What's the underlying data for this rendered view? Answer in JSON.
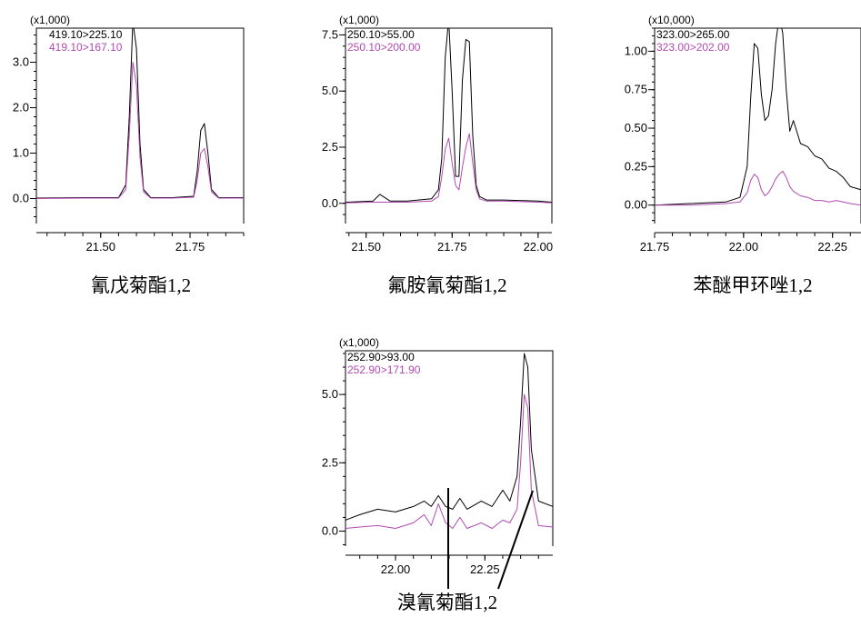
{
  "colors": {
    "black": "#000000",
    "magenta": "#b04ab0"
  },
  "chart_data": [
    {
      "type": "line",
      "scale_label": "(x1,000)",
      "caption": "氰戊菊酯1,2",
      "xlim": [
        21.32,
        21.9
      ],
      "ylim": [
        -0.55,
        3.75
      ],
      "xticks": [
        21.5,
        21.75
      ],
      "xtick_labels": [
        "21.50",
        "21.75"
      ],
      "yticks": [
        0,
        1,
        2,
        3
      ],
      "ytick_labels": [
        "0.0",
        "1.0",
        "2.0",
        "3.0"
      ],
      "series": [
        {
          "name": "419.10>225.10",
          "color": "#000000",
          "x": [
            21.32,
            21.45,
            21.55,
            21.57,
            21.58,
            21.59,
            21.6,
            21.61,
            21.62,
            21.64,
            21.7,
            21.76,
            21.77,
            21.78,
            21.79,
            21.8,
            21.81,
            21.83,
            21.9
          ],
          "y": [
            0.01,
            0.02,
            0.02,
            0.3,
            1.8,
            3.9,
            3.3,
            1.2,
            0.2,
            0.02,
            0.02,
            0.05,
            0.6,
            1.5,
            1.65,
            1.0,
            0.2,
            0.02,
            0.02
          ]
        },
        {
          "name": "419.10>167.10",
          "color": "#b04ab0",
          "x": [
            21.32,
            21.45,
            21.55,
            21.57,
            21.58,
            21.59,
            21.6,
            21.61,
            21.62,
            21.64,
            21.7,
            21.76,
            21.77,
            21.78,
            21.79,
            21.8,
            21.81,
            21.83,
            21.9
          ],
          "y": [
            0.0,
            0.01,
            0.01,
            0.2,
            1.4,
            3.0,
            2.5,
            0.9,
            0.15,
            0.01,
            0.01,
            0.03,
            0.4,
            1.0,
            1.1,
            0.7,
            0.15,
            0.01,
            0.01
          ]
        }
      ]
    },
    {
      "type": "line",
      "scale_label": "(x1,000)",
      "caption": "氟胺氰菊酯1,2",
      "xlim": [
        21.44,
        22.04
      ],
      "ylim": [
        -0.9,
        7.8
      ],
      "xticks": [
        21.5,
        21.75,
        22.0
      ],
      "xtick_labels": [
        "21.50",
        "21.75",
        "22.00"
      ],
      "yticks": [
        0,
        2.5,
        5.0,
        7.5
      ],
      "ytick_labels": [
        "0.0",
        "2.5",
        "5.0",
        "7.5"
      ],
      "series": [
        {
          "name": "250.10>55.00",
          "color": "#000000",
          "x": [
            21.44,
            21.52,
            21.54,
            21.57,
            21.62,
            21.69,
            21.71,
            21.72,
            21.73,
            21.74,
            21.75,
            21.76,
            21.77,
            21.78,
            21.79,
            21.8,
            21.81,
            21.82,
            21.83,
            21.85,
            21.9,
            22.0,
            22.04
          ],
          "y": [
            0.05,
            0.1,
            0.4,
            0.1,
            0.1,
            0.2,
            0.6,
            2.0,
            6.5,
            8.2,
            5.0,
            1.2,
            1.2,
            5.5,
            7.3,
            7.2,
            3.0,
            0.8,
            0.3,
            0.15,
            0.15,
            0.1,
            0.05
          ]
        },
        {
          "name": "250.10>200.00",
          "color": "#b04ab0",
          "x": [
            21.44,
            21.52,
            21.62,
            21.69,
            21.71,
            21.72,
            21.73,
            21.74,
            21.75,
            21.76,
            21.77,
            21.78,
            21.79,
            21.8,
            21.81,
            21.82,
            21.83,
            21.85,
            21.9,
            22.0,
            22.04
          ],
          "y": [
            0.02,
            0.05,
            0.05,
            0.1,
            0.3,
            1.2,
            2.4,
            2.9,
            1.8,
            0.8,
            0.6,
            1.6,
            2.5,
            3.1,
            1.8,
            0.6,
            0.2,
            0.1,
            0.1,
            0.05,
            0.02
          ]
        }
      ]
    },
    {
      "type": "line",
      "scale_label": "(x10,000)",
      "caption": "苯醚甲环唑1,2",
      "xlim": [
        21.75,
        22.33
      ],
      "ylim": [
        -0.12,
        1.15
      ],
      "xticks": [
        21.75,
        22.0,
        22.25
      ],
      "xtick_labels": [
        "21.75",
        "22.00",
        "22.25"
      ],
      "yticks": [
        0,
        0.25,
        0.5,
        0.75,
        1.0
      ],
      "ytick_labels": [
        "0.00",
        "0.25",
        "0.50",
        "0.75",
        "1.00"
      ],
      "series": [
        {
          "name": "323.00>265.00",
          "color": "#000000",
          "x": [
            21.75,
            21.85,
            21.95,
            21.99,
            22.01,
            22.02,
            22.03,
            22.04,
            22.05,
            22.06,
            22.07,
            22.08,
            22.09,
            22.1,
            22.11,
            22.12,
            22.13,
            22.14,
            22.16,
            22.18,
            22.2,
            22.22,
            22.24,
            22.26,
            22.28,
            22.3,
            22.33
          ],
          "y": [
            0.0,
            0.01,
            0.02,
            0.05,
            0.25,
            0.7,
            1.05,
            1.02,
            0.72,
            0.55,
            0.58,
            0.75,
            1.05,
            1.22,
            1.12,
            0.75,
            0.48,
            0.55,
            0.4,
            0.38,
            0.32,
            0.3,
            0.24,
            0.22,
            0.18,
            0.12,
            0.1
          ]
        },
        {
          "name": "323.00>202.00",
          "color": "#b04ab0",
          "x": [
            21.75,
            21.85,
            21.95,
            21.99,
            22.01,
            22.02,
            22.03,
            22.04,
            22.05,
            22.06,
            22.07,
            22.08,
            22.09,
            22.1,
            22.11,
            22.12,
            22.13,
            22.14,
            22.16,
            22.18,
            22.2,
            22.22,
            22.24,
            22.26,
            22.28,
            22.3,
            22.33
          ],
          "y": [
            0.0,
            0.0,
            0.01,
            0.02,
            0.08,
            0.16,
            0.2,
            0.18,
            0.1,
            0.06,
            0.08,
            0.12,
            0.17,
            0.2,
            0.22,
            0.18,
            0.12,
            0.09,
            0.06,
            0.05,
            0.03,
            0.03,
            0.02,
            0.03,
            0.02,
            0.01,
            0.0
          ]
        }
      ]
    },
    {
      "type": "line",
      "scale_label": "(x1,000)",
      "caption": "溴氰菊酯1,2",
      "xlim": [
        21.86,
        22.44
      ],
      "ylim": [
        -0.55,
        6.6
      ],
      "xticks": [
        22.0,
        22.25
      ],
      "xtick_labels": [
        "22.00",
        "22.25"
      ],
      "yticks": [
        0,
        2.5,
        5.0
      ],
      "ytick_labels": [
        "0.0",
        "2.5",
        "5.0"
      ],
      "series": [
        {
          "name": "252.90>93.00",
          "color": "#000000",
          "x": [
            21.86,
            21.9,
            21.95,
            22.0,
            22.05,
            22.08,
            22.1,
            22.12,
            22.14,
            22.16,
            22.18,
            22.2,
            22.24,
            22.27,
            22.3,
            22.32,
            22.34,
            22.35,
            22.36,
            22.37,
            22.38,
            22.4,
            22.44
          ],
          "y": [
            0.4,
            0.6,
            0.8,
            0.7,
            0.9,
            1.1,
            0.9,
            1.3,
            0.9,
            0.8,
            1.2,
            0.8,
            1.1,
            0.9,
            1.5,
            1.1,
            2.0,
            4.0,
            6.5,
            6.0,
            3.0,
            1.1,
            0.9
          ]
        },
        {
          "name": "252.90>171.90",
          "color": "#b04ab0",
          "x": [
            21.86,
            21.9,
            21.95,
            22.0,
            22.05,
            22.08,
            22.1,
            22.12,
            22.14,
            22.16,
            22.18,
            22.2,
            22.24,
            22.27,
            22.3,
            22.32,
            22.34,
            22.35,
            22.36,
            22.37,
            22.38,
            22.4,
            22.44
          ],
          "y": [
            0.1,
            0.15,
            0.2,
            0.1,
            0.3,
            0.6,
            0.2,
            1.0,
            0.3,
            0.1,
            0.5,
            0.1,
            0.3,
            0.1,
            0.4,
            0.3,
            0.8,
            2.5,
            5.0,
            4.5,
            1.5,
            0.2,
            0.15
          ]
        }
      ]
    }
  ]
}
